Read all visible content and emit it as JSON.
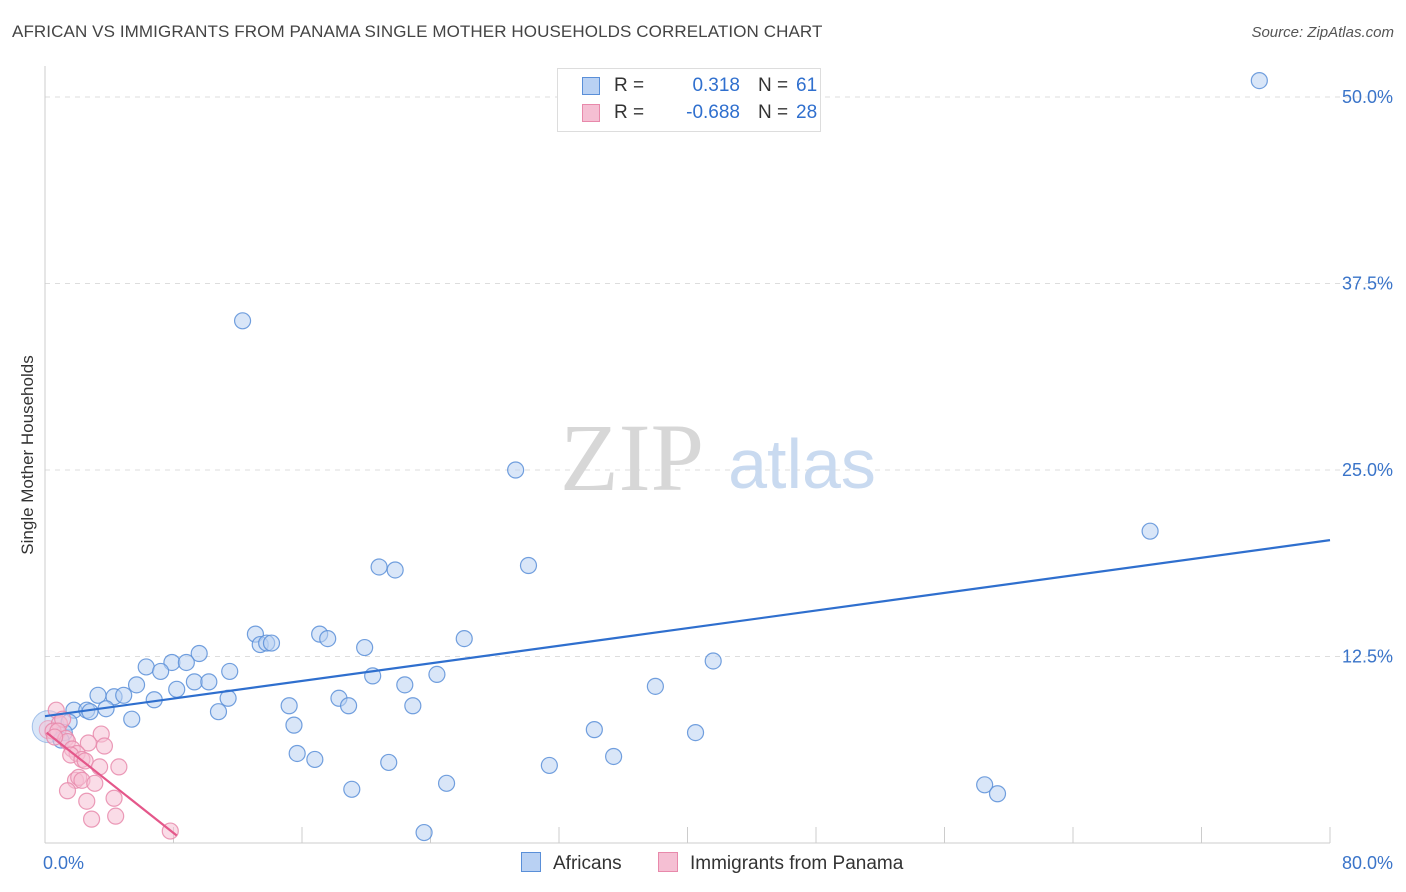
{
  "header": {
    "title": "AFRICAN VS IMMIGRANTS FROM PANAMA SINGLE MOTHER HOUSEHOLDS CORRELATION CHART",
    "source": "Source: ZipAtlas.com"
  },
  "colors": {
    "blue": "#2f6fce",
    "blue_fill": "#b9d1f3",
    "pink": "#e4578a",
    "pink_fill": "#f5bfd3",
    "grid": "#dddddd",
    "tick_label": "#3a74c9"
  },
  "legend": {
    "r_label": "R =",
    "n_label": "N =",
    "series": [
      {
        "name": "Africans",
        "r": "0.318",
        "n": "61"
      },
      {
        "name": "Immigrants from Panama",
        "r": "-0.688",
        "n": "28"
      }
    ]
  },
  "watermark": {
    "zip": "ZIP",
    "atlas": "atlas"
  },
  "chart_data": {
    "type": "scatter",
    "title": "AFRICAN VS IMMIGRANTS FROM PANAMA SINGLE MOTHER HOUSEHOLDS CORRELATION CHART",
    "xlabel": "",
    "ylabel": "Single Mother Households",
    "xlim": [
      0,
      80
    ],
    "ylim": [
      0,
      50
    ],
    "x_tick_labels": [
      "0.0%",
      "80.0%"
    ],
    "y_ticks": [
      12.5,
      25.0,
      37.5,
      50.0
    ],
    "y_tick_labels": [
      "12.5%",
      "25.0%",
      "37.5%",
      "50.0%"
    ],
    "grid": true,
    "legend_position": "top-center",
    "series": [
      {
        "name": "Africans",
        "trendline": {
          "x": [
            0,
            80
          ],
          "y": [
            8.5,
            20.3
          ]
        },
        "points": [
          {
            "x": 75.6,
            "y": 51.1
          },
          {
            "x": 12.3,
            "y": 35.0
          },
          {
            "x": 29.3,
            "y": 25.0
          },
          {
            "x": 68.8,
            "y": 20.9
          },
          {
            "x": 30.1,
            "y": 18.6
          },
          {
            "x": 20.8,
            "y": 18.5
          },
          {
            "x": 21.8,
            "y": 18.3
          },
          {
            "x": 13.1,
            "y": 14.0
          },
          {
            "x": 13.4,
            "y": 13.3
          },
          {
            "x": 13.8,
            "y": 13.4
          },
          {
            "x": 14.1,
            "y": 13.4
          },
          {
            "x": 17.1,
            "y": 14.0
          },
          {
            "x": 17.6,
            "y": 13.7
          },
          {
            "x": 19.9,
            "y": 13.1
          },
          {
            "x": 26.1,
            "y": 13.7
          },
          {
            "x": 9.6,
            "y": 12.7
          },
          {
            "x": 7.9,
            "y": 12.1
          },
          {
            "x": 8.8,
            "y": 12.1
          },
          {
            "x": 6.3,
            "y": 11.8
          },
          {
            "x": 7.2,
            "y": 11.5
          },
          {
            "x": 11.5,
            "y": 11.5
          },
          {
            "x": 20.4,
            "y": 11.2
          },
          {
            "x": 24.4,
            "y": 11.3
          },
          {
            "x": 41.6,
            "y": 12.2
          },
          {
            "x": 5.7,
            "y": 10.6
          },
          {
            "x": 8.2,
            "y": 10.3
          },
          {
            "x": 9.3,
            "y": 10.8
          },
          {
            "x": 10.2,
            "y": 10.8
          },
          {
            "x": 22.4,
            "y": 10.6
          },
          {
            "x": 38.0,
            "y": 10.5
          },
          {
            "x": 3.3,
            "y": 9.9
          },
          {
            "x": 4.3,
            "y": 9.8
          },
          {
            "x": 4.9,
            "y": 9.9
          },
          {
            "x": 6.8,
            "y": 9.6
          },
          {
            "x": 11.4,
            "y": 9.7
          },
          {
            "x": 18.3,
            "y": 9.7
          },
          {
            "x": 1.8,
            "y": 8.9
          },
          {
            "x": 2.6,
            "y": 8.9
          },
          {
            "x": 2.8,
            "y": 8.8
          },
          {
            "x": 3.8,
            "y": 9.0
          },
          {
            "x": 15.2,
            "y": 9.2
          },
          {
            "x": 18.9,
            "y": 9.2
          },
          {
            "x": 22.9,
            "y": 9.2
          },
          {
            "x": 10.8,
            "y": 8.8
          },
          {
            "x": 5.4,
            "y": 8.3
          },
          {
            "x": 15.5,
            "y": 7.9
          },
          {
            "x": 34.2,
            "y": 7.6
          },
          {
            "x": 40.5,
            "y": 7.4
          },
          {
            "x": 1.5,
            "y": 8.1
          },
          {
            "x": 1.2,
            "y": 7.4
          },
          {
            "x": 1.0,
            "y": 6.9
          },
          {
            "x": 15.7,
            "y": 6.0
          },
          {
            "x": 16.8,
            "y": 5.6
          },
          {
            "x": 35.4,
            "y": 5.8
          },
          {
            "x": 21.4,
            "y": 5.4
          },
          {
            "x": 31.4,
            "y": 5.2
          },
          {
            "x": 25.0,
            "y": 4.0
          },
          {
            "x": 19.1,
            "y": 3.6
          },
          {
            "x": 58.5,
            "y": 3.9
          },
          {
            "x": 59.3,
            "y": 3.3
          },
          {
            "x": 23.6,
            "y": 0.7
          }
        ]
      },
      {
        "name": "Immigrants from Panama",
        "trendline": {
          "x": [
            0.1,
            8.2
          ],
          "y": [
            7.4,
            0.5
          ]
        },
        "points": [
          {
            "x": 0.7,
            "y": 8.9
          },
          {
            "x": 0.9,
            "y": 8.0
          },
          {
            "x": 1.1,
            "y": 8.3
          },
          {
            "x": 0.5,
            "y": 7.5
          },
          {
            "x": 0.8,
            "y": 7.5
          },
          {
            "x": 1.3,
            "y": 7.0
          },
          {
            "x": 1.4,
            "y": 6.8
          },
          {
            "x": 0.6,
            "y": 7.1
          },
          {
            "x": 3.5,
            "y": 7.3
          },
          {
            "x": 2.7,
            "y": 6.7
          },
          {
            "x": 3.7,
            "y": 6.5
          },
          {
            "x": 1.7,
            "y": 6.3
          },
          {
            "x": 2.0,
            "y": 6.0
          },
          {
            "x": 1.6,
            "y": 5.9
          },
          {
            "x": 2.3,
            "y": 5.6
          },
          {
            "x": 2.5,
            "y": 5.5
          },
          {
            "x": 3.4,
            "y": 5.1
          },
          {
            "x": 4.6,
            "y": 5.1
          },
          {
            "x": 1.9,
            "y": 4.2
          },
          {
            "x": 2.1,
            "y": 4.4
          },
          {
            "x": 2.3,
            "y": 4.2
          },
          {
            "x": 3.1,
            "y": 4.0
          },
          {
            "x": 1.4,
            "y": 3.5
          },
          {
            "x": 4.3,
            "y": 3.0
          },
          {
            "x": 2.6,
            "y": 2.8
          },
          {
            "x": 2.9,
            "y": 1.6
          },
          {
            "x": 4.4,
            "y": 1.8
          },
          {
            "x": 7.8,
            "y": 0.8
          }
        ]
      }
    ]
  }
}
